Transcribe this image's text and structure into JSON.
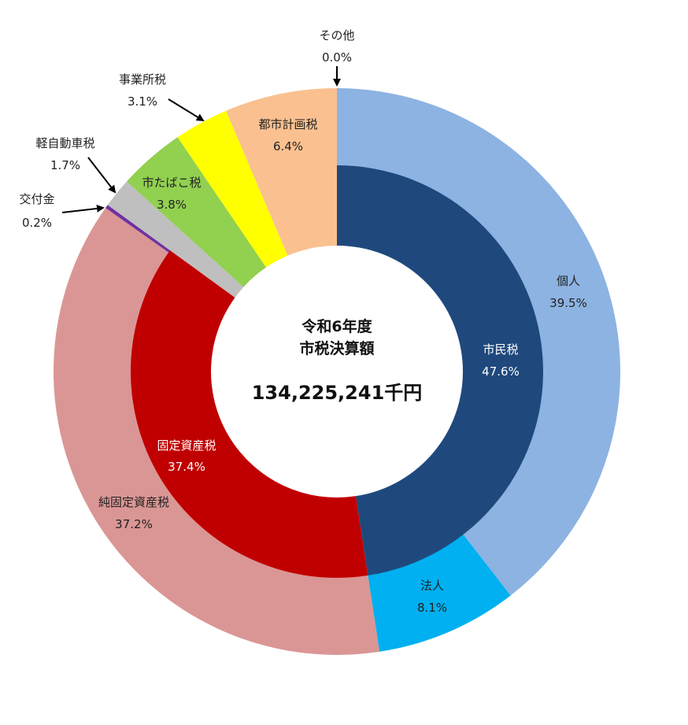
{
  "chart_data": {
    "type": "donut",
    "center": {
      "title_line1": "令和6年度",
      "title_line2": "市税決算額",
      "total": "134,225,241千円"
    },
    "inner_ring": [
      {
        "name": "市民税",
        "value_pct": 47.6,
        "label": "47.6%",
        "color": "#1f497d"
      },
      {
        "name": "固定資産税",
        "value_pct": 37.4,
        "label": "37.4%",
        "color": "#c00000"
      },
      {
        "name": "軽自動車税",
        "value_pct": 1.7,
        "color": "#bfbfbf"
      },
      {
        "name": "市たばこ税",
        "value_pct": 3.8,
        "color": "#92d050"
      },
      {
        "name": "事業所税",
        "value_pct": 3.1,
        "color": "#ffff00"
      },
      {
        "name": "都市計画税",
        "value_pct": 6.4,
        "color": "#fac090"
      }
    ],
    "outer_ring": [
      {
        "name": "個人",
        "value_pct": 39.5,
        "label": "39.5%",
        "color": "#8db3e2"
      },
      {
        "name": "法人",
        "value_pct": 8.1,
        "label": "8.1%",
        "color": "#00b0f0"
      },
      {
        "name": "純固定資産税",
        "value_pct": 37.2,
        "label": "37.2%",
        "color": "#da9694"
      },
      {
        "name": "交付金",
        "value_pct": 0.2,
        "label": "0.2%",
        "color": "#7030a0"
      },
      {
        "name": "軽自動車税",
        "value_pct": 1.7,
        "label": "1.7%",
        "color": "#bfbfbf"
      },
      {
        "name": "市たばこ税",
        "value_pct": 3.8,
        "label": "3.8%",
        "color": "#92d050"
      },
      {
        "name": "事業所税",
        "value_pct": 3.1,
        "label": "3.1%",
        "color": "#ffff00"
      },
      {
        "name": "都市計画税",
        "value_pct": 6.4,
        "label": "6.4%",
        "color": "#fac090"
      },
      {
        "name": "その他",
        "value_pct": 0.0,
        "label": "0.0%",
        "color": "#d9d9d9"
      }
    ]
  }
}
